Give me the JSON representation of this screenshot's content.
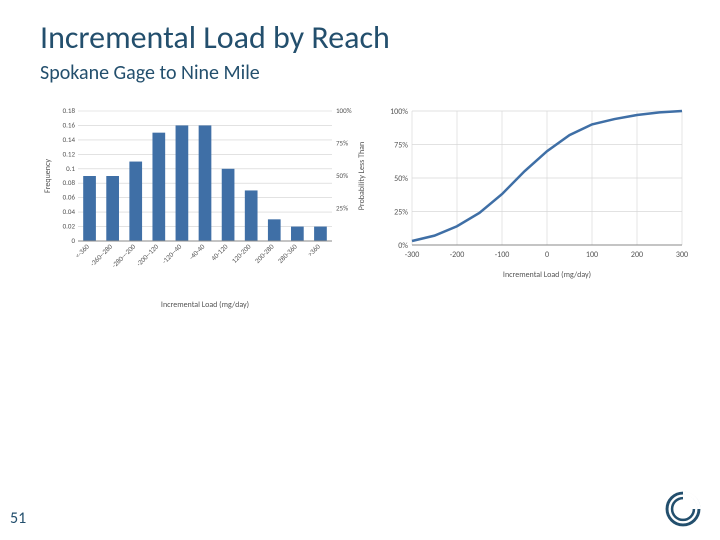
{
  "title": "Incremental Load by Reach",
  "subtitle": "Spokane Gage to Nine Mile",
  "page_number": "51",
  "colors": {
    "heading": "#234f6d",
    "bar_fill": "#3f6fa6",
    "line_stroke": "#3f6fa6",
    "grid": "#d0d0d0",
    "axis": "#888888",
    "tick_text": "#555555",
    "background": "#ffffff"
  },
  "bar_chart": {
    "type": "bar",
    "ylabel": "Frequency",
    "right_ylabel": "Probability Less Than",
    "xlabel": "Incremental Load (mg/day)",
    "categories": [
      "<-360",
      "-360--280",
      "-280---200",
      "-200--120",
      "-120--40",
      "-40-40",
      "40-120",
      "120-200",
      "200-280",
      "280-360",
      ">360"
    ],
    "values": [
      0.09,
      0.09,
      0.11,
      0.15,
      0.16,
      0.16,
      0.1,
      0.07,
      0.03,
      0.02,
      0.02
    ],
    "ylim": [
      0,
      0.18
    ],
    "ytick_step": 0.02,
    "yticks": [
      "0",
      "0.02",
      "0.04",
      "0.06",
      "0.08",
      "0.1",
      "0.12",
      "0.14",
      "0.16",
      "0.18"
    ],
    "right_yticks": [
      "25%",
      "50%",
      "75%",
      "100%"
    ],
    "right_ylim": [
      0,
      100
    ],
    "bar_width": 0.55,
    "label_fontsize": 7,
    "label_rotation": -45
  },
  "line_chart": {
    "type": "line",
    "xlabel": "Incremental Load (mg/day)",
    "xlim": [
      -300,
      300
    ],
    "xtick_step": 100,
    "xticks": [
      "-300",
      "-200",
      "-100",
      "0",
      "100",
      "200",
      "300"
    ],
    "ylim": [
      0,
      100
    ],
    "ytick_step": 25,
    "yticks": [
      "0%",
      "25%",
      "50%",
      "75%",
      "100%"
    ],
    "pts_x": [
      -300,
      -250,
      -200,
      -150,
      -100,
      -50,
      0,
      50,
      100,
      150,
      200,
      250,
      300
    ],
    "pts_y": [
      3,
      7,
      14,
      24,
      38,
      55,
      70,
      82,
      90,
      94,
      97,
      99,
      100
    ],
    "line_width": 2.5,
    "grid_color": "#d9d9d9",
    "label_fontsize": 8
  }
}
